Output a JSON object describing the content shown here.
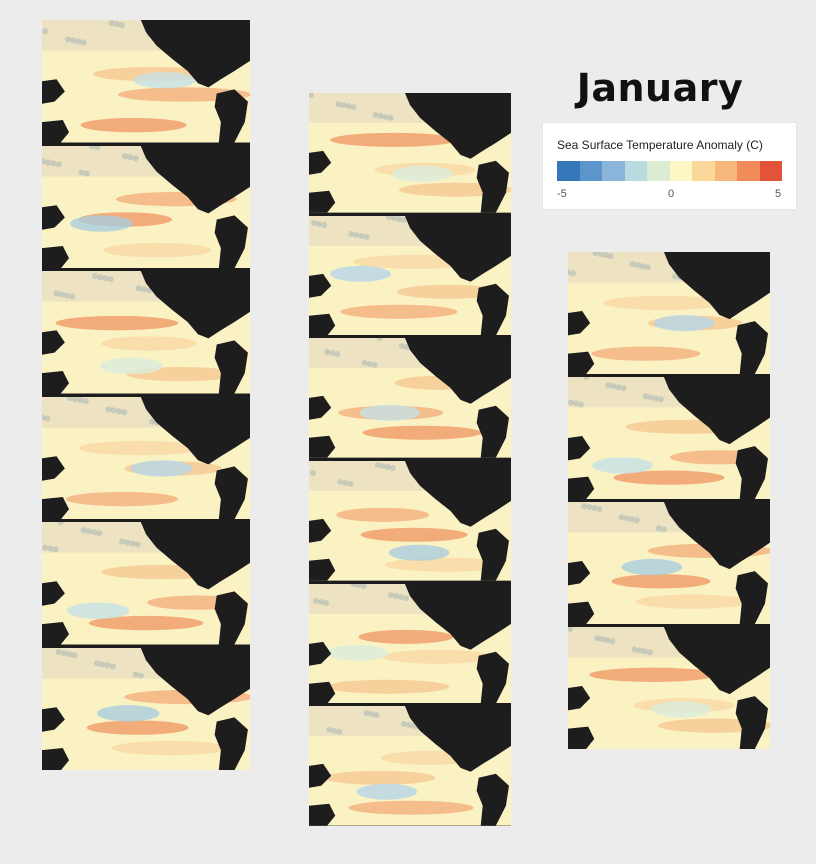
{
  "title": "January",
  "legend": {
    "title": "Sea Surface Temperature Anomaly (C)",
    "min_label": "-5",
    "mid_label": "0",
    "max_label": "5",
    "colors": [
      "#3577b8",
      "#5c95c9",
      "#8ab4da",
      "#b8dbe0",
      "#dcecd2",
      "#fdf7c6",
      "#fbd89a",
      "#f7b77b",
      "#ef8c5a",
      "#e2533a"
    ]
  },
  "columns": [
    {
      "name": "left",
      "panels": 6
    },
    {
      "name": "middle",
      "panels": 6
    },
    {
      "name": "right",
      "panels": 4
    }
  ]
}
